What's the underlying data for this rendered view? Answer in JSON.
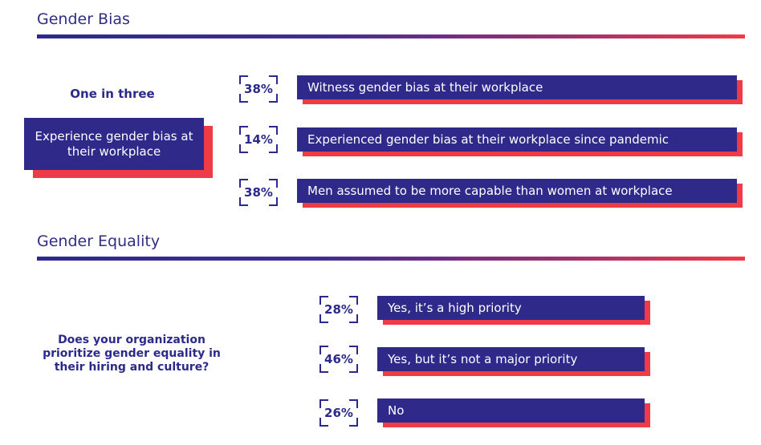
{
  "chart_data": [
    {
      "type": "bar",
      "title": "Gender Bias",
      "headline": "One in three",
      "summary": "Experience gender bias at their workplace",
      "categories": [
        "Witness gender bias at their workplace",
        "Experienced gender bias at their workplace since pandemic",
        "Men assumed to be more capable than women at workplace"
      ],
      "values": [
        38,
        14,
        38
      ],
      "value_labels": [
        "38%",
        "14%",
        "38%"
      ],
      "unit": "%"
    },
    {
      "type": "bar",
      "title": "Gender Equality",
      "question": "Does your organization prioritize gender equality in their hiring and culture?",
      "categories": [
        "Yes, it’s a high priority",
        "Yes, but it’s not a major priority",
        "No"
      ],
      "values": [
        28,
        46,
        26
      ],
      "value_labels": [
        "28%",
        "46%",
        "26%"
      ],
      "unit": "%"
    }
  ],
  "colors": {
    "primary": "#2f2a8a",
    "accent": "#ef3b46",
    "text": "#2b2a8c"
  }
}
